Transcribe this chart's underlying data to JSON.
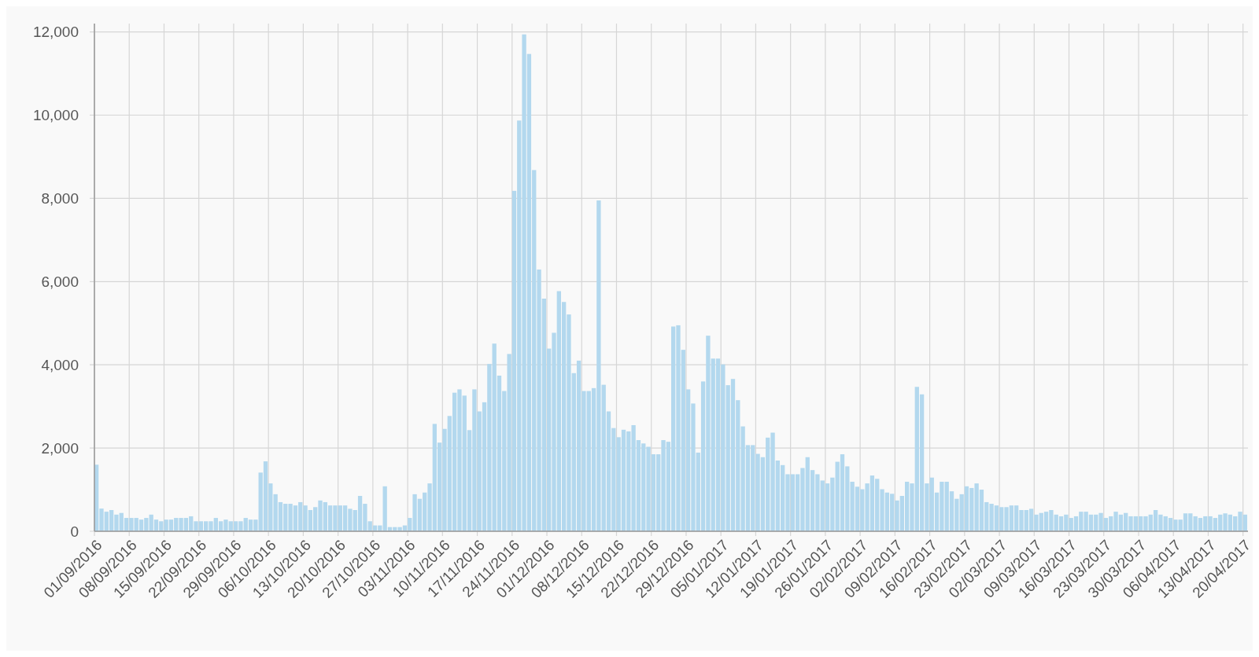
{
  "chart_data": {
    "type": "bar",
    "color": "#b3d8ee",
    "grid": true,
    "xlim": [
      "2016-09-01",
      "2017-04-21"
    ],
    "ylim": [
      0,
      12200
    ],
    "yticks": [
      {
        "value": 0,
        "label": "0"
      },
      {
        "value": 2000,
        "label": "2,000"
      },
      {
        "value": 4000,
        "label": "4,000"
      },
      {
        "value": 6000,
        "label": "6,000"
      },
      {
        "value": 8000,
        "label": "8,000"
      },
      {
        "value": 10000,
        "label": "10,000"
      },
      {
        "value": 12000,
        "label": "12,000"
      }
    ],
    "xticks": [
      {
        "value": "2016-09-01",
        "label": "01/09/2016"
      },
      {
        "value": "2016-09-08",
        "label": "08/09/2016"
      },
      {
        "value": "2016-09-15",
        "label": "15/09/2016"
      },
      {
        "value": "2016-09-22",
        "label": "22/09/2016"
      },
      {
        "value": "2016-09-29",
        "label": "29/09/2016"
      },
      {
        "value": "2016-10-06",
        "label": "06/10/2016"
      },
      {
        "value": "2016-10-13",
        "label": "13/10/2016"
      },
      {
        "value": "2016-10-20",
        "label": "20/10/2016"
      },
      {
        "value": "2016-10-27",
        "label": "27/10/2016"
      },
      {
        "value": "2016-11-03",
        "label": "03/11/2016"
      },
      {
        "value": "2016-11-10",
        "label": "10/11/2016"
      },
      {
        "value": "2016-11-17",
        "label": "17/11/2016"
      },
      {
        "value": "2016-11-24",
        "label": "24/11/2016"
      },
      {
        "value": "2016-12-01",
        "label": "01/12/2016"
      },
      {
        "value": "2016-12-08",
        "label": "08/12/2016"
      },
      {
        "value": "2016-12-15",
        "label": "15/12/2016"
      },
      {
        "value": "2016-12-22",
        "label": "22/12/2016"
      },
      {
        "value": "2016-12-29",
        "label": "29/12/2016"
      },
      {
        "value": "2017-01-05",
        "label": "05/01/2017"
      },
      {
        "value": "2017-01-12",
        "label": "12/01/2017"
      },
      {
        "value": "2017-01-19",
        "label": "19/01/2017"
      },
      {
        "value": "2017-01-26",
        "label": "26/01/2017"
      },
      {
        "value": "2017-02-02",
        "label": "02/02/2017"
      },
      {
        "value": "2017-02-09",
        "label": "09/02/2017"
      },
      {
        "value": "2017-02-16",
        "label": "16/02/2017"
      },
      {
        "value": "2017-02-23",
        "label": "23/02/2017"
      },
      {
        "value": "2017-03-02",
        "label": "02/03/2017"
      },
      {
        "value": "2017-03-09",
        "label": "09/03/2017"
      },
      {
        "value": "2017-03-16",
        "label": "16/03/2017"
      },
      {
        "value": "2017-03-23",
        "label": "23/03/2017"
      },
      {
        "value": "2017-03-30",
        "label": "30/03/2017"
      },
      {
        "value": "2017-04-06",
        "label": "06/04/2017"
      },
      {
        "value": "2017-04-13",
        "label": "13/04/2017"
      },
      {
        "value": "2017-04-20",
        "label": "20/04/2017"
      }
    ],
    "x": [
      "2016-09-01",
      "2016-09-02",
      "2016-09-03",
      "2016-09-04",
      "2016-09-05",
      "2016-09-06",
      "2016-09-07",
      "2016-09-08",
      "2016-09-09",
      "2016-09-10",
      "2016-09-11",
      "2016-09-12",
      "2016-09-13",
      "2016-09-14",
      "2016-09-15",
      "2016-09-16",
      "2016-09-17",
      "2016-09-18",
      "2016-09-19",
      "2016-09-20",
      "2016-09-21",
      "2016-09-22",
      "2016-09-23",
      "2016-09-24",
      "2016-09-25",
      "2016-09-26",
      "2016-09-27",
      "2016-09-28",
      "2016-09-29",
      "2016-09-30",
      "2016-10-01",
      "2016-10-02",
      "2016-10-03",
      "2016-10-04",
      "2016-10-05",
      "2016-10-06",
      "2016-10-07",
      "2016-10-08",
      "2016-10-09",
      "2016-10-10",
      "2016-10-11",
      "2016-10-12",
      "2016-10-13",
      "2016-10-14",
      "2016-10-15",
      "2016-10-16",
      "2016-10-17",
      "2016-10-18",
      "2016-10-19",
      "2016-10-20",
      "2016-10-21",
      "2016-10-22",
      "2016-10-23",
      "2016-10-24",
      "2016-10-25",
      "2016-10-26",
      "2016-10-27",
      "2016-10-28",
      "2016-10-29",
      "2016-10-30",
      "2016-10-31",
      "2016-11-01",
      "2016-11-02",
      "2016-11-03",
      "2016-11-04",
      "2016-11-05",
      "2016-11-06",
      "2016-11-07",
      "2016-11-08",
      "2016-11-09",
      "2016-11-10",
      "2016-11-11",
      "2016-11-12",
      "2016-11-13",
      "2016-11-14",
      "2016-11-15",
      "2016-11-16",
      "2016-11-17",
      "2016-11-18",
      "2016-11-19",
      "2016-11-20",
      "2016-11-21",
      "2016-11-22",
      "2016-11-23",
      "2016-11-24",
      "2016-11-25",
      "2016-11-26",
      "2016-11-27",
      "2016-11-28",
      "2016-11-29",
      "2016-11-30",
      "2016-12-01",
      "2016-12-02",
      "2016-12-03",
      "2016-12-04",
      "2016-12-05",
      "2016-12-06",
      "2016-12-07",
      "2016-12-08",
      "2016-12-09",
      "2016-12-10",
      "2016-12-11",
      "2016-12-12",
      "2016-12-13",
      "2016-12-14",
      "2016-12-15",
      "2016-12-16",
      "2016-12-17",
      "2016-12-18",
      "2016-12-19",
      "2016-12-20",
      "2016-12-21",
      "2016-12-22",
      "2016-12-23",
      "2016-12-24",
      "2016-12-25",
      "2016-12-26",
      "2016-12-27",
      "2016-12-28",
      "2016-12-29",
      "2016-12-30",
      "2016-12-31",
      "2017-01-01",
      "2017-01-02",
      "2017-01-03",
      "2017-01-04",
      "2017-01-05",
      "2017-01-06",
      "2017-01-07",
      "2017-01-08",
      "2017-01-09",
      "2017-01-10",
      "2017-01-11",
      "2017-01-12",
      "2017-01-13",
      "2017-01-14",
      "2017-01-15",
      "2017-01-16",
      "2017-01-17",
      "2017-01-18",
      "2017-01-19",
      "2017-01-20",
      "2017-01-21",
      "2017-01-22",
      "2017-01-23",
      "2017-01-24",
      "2017-01-25",
      "2017-01-26",
      "2017-01-27",
      "2017-01-28",
      "2017-01-29",
      "2017-01-30",
      "2017-01-31",
      "2017-02-01",
      "2017-02-02",
      "2017-02-03",
      "2017-02-04",
      "2017-02-05",
      "2017-02-06",
      "2017-02-07",
      "2017-02-08",
      "2017-02-09",
      "2017-02-10",
      "2017-02-11",
      "2017-02-12",
      "2017-02-13",
      "2017-02-14",
      "2017-02-15",
      "2017-02-16",
      "2017-02-17",
      "2017-02-18",
      "2017-02-19",
      "2017-02-20",
      "2017-02-21",
      "2017-02-22",
      "2017-02-23",
      "2017-02-24",
      "2017-02-25",
      "2017-02-26",
      "2017-02-27",
      "2017-02-28",
      "2017-03-01",
      "2017-03-02",
      "2017-03-03",
      "2017-03-04",
      "2017-03-05",
      "2017-03-06",
      "2017-03-07",
      "2017-03-08",
      "2017-03-09",
      "2017-03-10",
      "2017-03-11",
      "2017-03-12",
      "2017-03-13",
      "2017-03-14",
      "2017-03-15",
      "2017-03-16",
      "2017-03-17",
      "2017-03-18",
      "2017-03-19",
      "2017-03-20",
      "2017-03-21",
      "2017-03-22",
      "2017-03-23",
      "2017-03-24",
      "2017-03-25",
      "2017-03-26",
      "2017-03-27",
      "2017-03-28",
      "2017-03-29",
      "2017-03-30",
      "2017-03-31",
      "2017-04-01",
      "2017-04-02",
      "2017-04-03",
      "2017-04-04",
      "2017-04-05",
      "2017-04-06",
      "2017-04-07",
      "2017-04-08",
      "2017-04-09",
      "2017-04-10",
      "2017-04-11",
      "2017-04-12",
      "2017-04-13",
      "2017-04-14",
      "2017-04-15",
      "2017-04-16",
      "2017-04-17",
      "2017-04-18",
      "2017-04-19",
      "2017-04-20"
    ],
    "values": [
      1600,
      545,
      470,
      510,
      400,
      440,
      320,
      320,
      320,
      280,
      320,
      400,
      280,
      240,
      280,
      280,
      320,
      320,
      320,
      360,
      240,
      240,
      240,
      240,
      320,
      240,
      280,
      240,
      240,
      240,
      320,
      280,
      280,
      1410,
      1680,
      1150,
      890,
      700,
      660,
      660,
      620,
      700,
      620,
      510,
      580,
      740,
      700,
      620,
      620,
      620,
      620,
      540,
      510,
      850,
      660,
      240,
      140,
      140,
      1080,
      100,
      100,
      100,
      140,
      320,
      890,
      780,
      930,
      1150,
      2580,
      2130,
      2460,
      2770,
      3330,
      3410,
      3260,
      2430,
      3410,
      2880,
      3100,
      4020,
      4510,
      3740,
      3370,
      4260,
      8180,
      9870,
      11940,
      11470,
      8680,
      6290,
      5590,
      4390,
      4770,
      5770,
      5510,
      5210,
      3800,
      4100,
      3370,
      3370,
      3440,
      7950,
      3520,
      2880,
      2480,
      2260,
      2440,
      2400,
      2550,
      2190,
      2110,
      2030,
      1850,
      1850,
      2190,
      2150,
      4920,
      4950,
      4360,
      3410,
      3070,
      1890,
      3600,
      4700,
      4150,
      4150,
      4010,
      3510,
      3660,
      3150,
      2520,
      2070,
      2070,
      1860,
      1780,
      2250,
      2370,
      1700,
      1590,
      1370,
      1370,
      1370,
      1520,
      1780,
      1470,
      1370,
      1220,
      1150,
      1290,
      1670,
      1850,
      1560,
      1190,
      1070,
      1010,
      1150,
      1340,
      1260,
      1010,
      930,
      900,
      740,
      850,
      1190,
      1150,
      3470,
      3290,
      1150,
      1290,
      930,
      1190,
      1190,
      960,
      780,
      890,
      1080,
      1040,
      1150,
      1000,
      700,
      660,
      620,
      580,
      580,
      620,
      620,
      510,
      510,
      540,
      400,
      440,
      470,
      510,
      400,
      360,
      400,
      320,
      360,
      470,
      470,
      400,
      400,
      440,
      320,
      360,
      470,
      400,
      440,
      360,
      360,
      360,
      360,
      400,
      510,
      400,
      360,
      320,
      280,
      280,
      430,
      430,
      360,
      320,
      360,
      360,
      320,
      400,
      430,
      400,
      360,
      470,
      400
    ]
  }
}
